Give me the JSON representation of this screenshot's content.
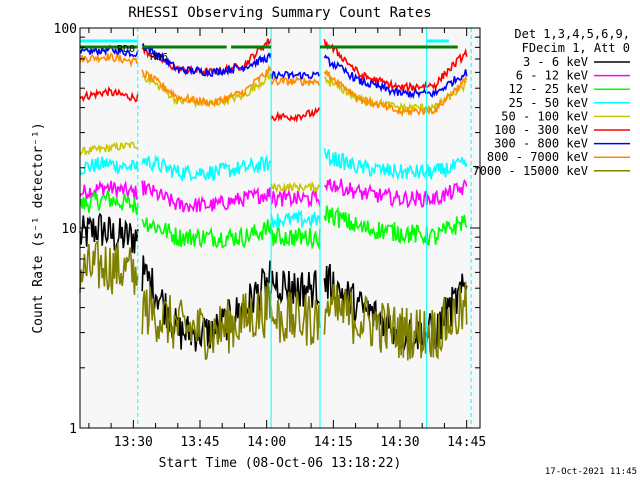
{
  "chart_data": {
    "type": "line",
    "title": "RHESSI Observing Summary Count Rates",
    "xlabel": "Start Time (08-Oct-06 13:18:22)",
    "ylabel": "Count Rate (s⁻¹ detector⁻¹)",
    "yscale": "log",
    "ylim": [
      1,
      100
    ],
    "y_ticks": [
      {
        "value": 1,
        "label": "1"
      },
      {
        "value": 10,
        "label": "10"
      },
      {
        "value": 100,
        "label": "100"
      }
    ],
    "xlim_minutes": [
      0,
      90
    ],
    "x_ticks": [
      {
        "minute": 12.0,
        "label": "13:30"
      },
      {
        "minute": 27.0,
        "label": "13:45"
      },
      {
        "minute": 42.0,
        "label": "14:00"
      },
      {
        "minute": 57.0,
        "label": "14:15"
      },
      {
        "minute": 72.0,
        "label": "14:30"
      },
      {
        "minute": 87.0,
        "label": "14:45"
      }
    ],
    "legend_header": [
      "Det 1,3,4,5,6,9,",
      "FDecim 1, Att 0"
    ],
    "legend_placement": "right",
    "footer_date": "17-Oct-2021 11:45",
    "series": [
      {
        "name": "3 - 6 keV",
        "color": "#000000"
      },
      {
        "name": "6 - 12 keV",
        "color": "#ff00ff"
      },
      {
        "name": "12 - 25 keV",
        "color": "#00ff00"
      },
      {
        "name": "25 - 50 keV",
        "color": "#00ffff"
      },
      {
        "name": "50 - 100 keV",
        "color": "#c8c800"
      },
      {
        "name": "100 - 300 keV",
        "color": "#ff0000"
      },
      {
        "name": "300 - 800 keV",
        "color": "#0000ff"
      },
      {
        "name": "800 - 7000 keV",
        "color": "#ff8c00"
      },
      {
        "name": "7000 - 15000 keV",
        "color": "#808000"
      }
    ],
    "flags": [
      {
        "label": "RD0",
        "color": "#00ffff",
        "segments": [
          [
            0,
            13
          ],
          [
            78,
            83
          ]
        ]
      },
      {
        "label": "RD6",
        "color": "#008000",
        "segments": [
          [
            0,
            13
          ],
          [
            14,
            33
          ],
          [
            34,
            43
          ],
          [
            54,
            85
          ]
        ]
      }
    ],
    "plot_data": [
      {
        "segment": [
          0,
          13
        ],
        "series": {
          "3 - 6 keV": [
            [
              0,
              9
            ],
            [
              4,
              10
            ],
            [
              8,
              9
            ],
            [
              12,
              9
            ]
          ],
          "6 - 12 keV": [
            [
              0,
              15
            ],
            [
              6,
              16
            ],
            [
              12,
              15
            ]
          ],
          "12 - 25 keV": [
            [
              0,
              13
            ],
            [
              6,
              14
            ],
            [
              12,
              13
            ]
          ],
          "25 - 50 keV": [
            [
              0,
              20
            ],
            [
              6,
              21
            ],
            [
              12,
              20
            ]
          ],
          "50 - 100 keV": [
            [
              0,
              24
            ],
            [
              6,
              25
            ],
            [
              12,
              26
            ]
          ],
          "100 - 300 keV": [
            [
              0,
              45
            ],
            [
              6,
              48
            ],
            [
              12,
              45
            ]
          ],
          "300 - 800 keV": [
            [
              0,
              75
            ],
            [
              6,
              78
            ],
            [
              12,
              75
            ]
          ],
          "800 - 7000 keV": [
            [
              0,
              70
            ],
            [
              6,
              72
            ],
            [
              12,
              68
            ]
          ],
          "7000 - 15000 keV": [
            [
              0,
              6
            ],
            [
              6,
              6.5
            ],
            [
              12,
              6
            ]
          ]
        }
      },
      {
        "segment": [
          14,
          43
        ],
        "series": {
          "3 - 6 keV": [
            [
              14,
              6
            ],
            [
              22,
              3
            ],
            [
              30,
              3
            ],
            [
              37,
              4
            ],
            [
              43,
              5.5
            ]
          ],
          "6 - 12 keV": [
            [
              14,
              16
            ],
            [
              22,
              13
            ],
            [
              30,
              13
            ],
            [
              37,
              14
            ],
            [
              43,
              15
            ]
          ],
          "12 - 25 keV": [
            [
              14,
              11
            ],
            [
              22,
              9
            ],
            [
              30,
              9
            ],
            [
              37,
              9
            ],
            [
              43,
              10
            ]
          ],
          "25 - 50 keV": [
            [
              14,
              22
            ],
            [
              22,
              19
            ],
            [
              30,
              19
            ],
            [
              37,
              20
            ],
            [
              43,
              21
            ]
          ],
          "50 - 100 keV": [
            [
              14,
              58
            ],
            [
              22,
              43
            ],
            [
              30,
              42
            ],
            [
              37,
              46
            ],
            [
              43,
              58
            ]
          ],
          "100 - 300 keV": [
            [
              14,
              78
            ],
            [
              22,
              62
            ],
            [
              30,
              60
            ],
            [
              37,
              65
            ],
            [
              43,
              88
            ]
          ],
          "300 - 800 keV": [
            [
              14,
              82
            ],
            [
              22,
              62
            ],
            [
              30,
              60
            ],
            [
              37,
              64
            ],
            [
              43,
              72
            ]
          ],
          "800 - 7000 keV": [
            [
              14,
              60
            ],
            [
              22,
              45
            ],
            [
              30,
              42
            ],
            [
              37,
              48
            ],
            [
              43,
              62
            ]
          ],
          "7000 - 15000 keV": [
            [
              14,
              4
            ],
            [
              22,
              3.2
            ],
            [
              30,
              3
            ],
            [
              37,
              3.5
            ],
            [
              43,
              4
            ]
          ]
        }
      },
      {
        "segment": [
          43,
          54
        ],
        "series": {
          "3 - 6 keV": [
            [
              43,
              5.5
            ],
            [
              48,
              5
            ],
            [
              54,
              5
            ]
          ],
          "6 - 12 keV": [
            [
              43,
              14
            ],
            [
              48,
              14
            ],
            [
              54,
              14
            ]
          ],
          "12 - 25 keV": [
            [
              43,
              9
            ],
            [
              48,
              9
            ],
            [
              54,
              9
            ]
          ],
          "25 - 50 keV": [
            [
              43,
              11
            ],
            [
              48,
              11
            ],
            [
              54,
              11
            ]
          ],
          "50 - 100 keV": [
            [
              43,
              16
            ],
            [
              48,
              16
            ],
            [
              54,
              16
            ]
          ],
          "100 - 300 keV": [
            [
              43,
              36
            ],
            [
              48,
              36
            ],
            [
              54,
              38
            ]
          ],
          "300 - 800 keV": [
            [
              43,
              58
            ],
            [
              48,
              58
            ],
            [
              54,
              58
            ]
          ],
          "800 - 7000 keV": [
            [
              43,
              54
            ],
            [
              48,
              54
            ],
            [
              54,
              54
            ]
          ],
          "7000 - 15000 keV": [
            [
              43,
              3.5
            ],
            [
              48,
              3.5
            ],
            [
              54,
              3.5
            ]
          ]
        }
      },
      {
        "segment": [
          55,
          87
        ],
        "series": {
          "3 - 6 keV": [
            [
              55,
              5.5
            ],
            [
              63,
              4
            ],
            [
              72,
              3
            ],
            [
              80,
              3
            ],
            [
              87,
              5
            ]
          ],
          "6 - 12 keV": [
            [
              55,
              17
            ],
            [
              63,
              15
            ],
            [
              72,
              14
            ],
            [
              80,
              14
            ],
            [
              87,
              16
            ]
          ],
          "12 - 25 keV": [
            [
              55,
              12
            ],
            [
              63,
              10
            ],
            [
              72,
              9.5
            ],
            [
              80,
              9
            ],
            [
              87,
              11
            ]
          ],
          "25 - 50 keV": [
            [
              55,
              23
            ],
            [
              63,
              20
            ],
            [
              72,
              19
            ],
            [
              80,
              19
            ],
            [
              87,
              21
            ]
          ],
          "50 - 100 keV": [
            [
              55,
              55
            ],
            [
              63,
              44
            ],
            [
              72,
              40
            ],
            [
              80,
              40
            ],
            [
              87,
              52
            ]
          ],
          "100 - 300 keV": [
            [
              55,
              85
            ],
            [
              63,
              58
            ],
            [
              72,
              50
            ],
            [
              80,
              52
            ],
            [
              87,
              75
            ]
          ],
          "300 - 800 keV": [
            [
              55,
              70
            ],
            [
              63,
              54
            ],
            [
              72,
              47
            ],
            [
              80,
              47
            ],
            [
              87,
              60
            ]
          ],
          "800 - 7000 keV": [
            [
              55,
              60
            ],
            [
              63,
              44
            ],
            [
              72,
              38
            ],
            [
              80,
              39
            ],
            [
              87,
              55
            ]
          ],
          "7000 - 15000 keV": [
            [
              55,
              4
            ],
            [
              63,
              3.5
            ],
            [
              72,
              3
            ],
            [
              80,
              3
            ],
            [
              87,
              4
            ]
          ]
        }
      }
    ],
    "grid": false
  }
}
